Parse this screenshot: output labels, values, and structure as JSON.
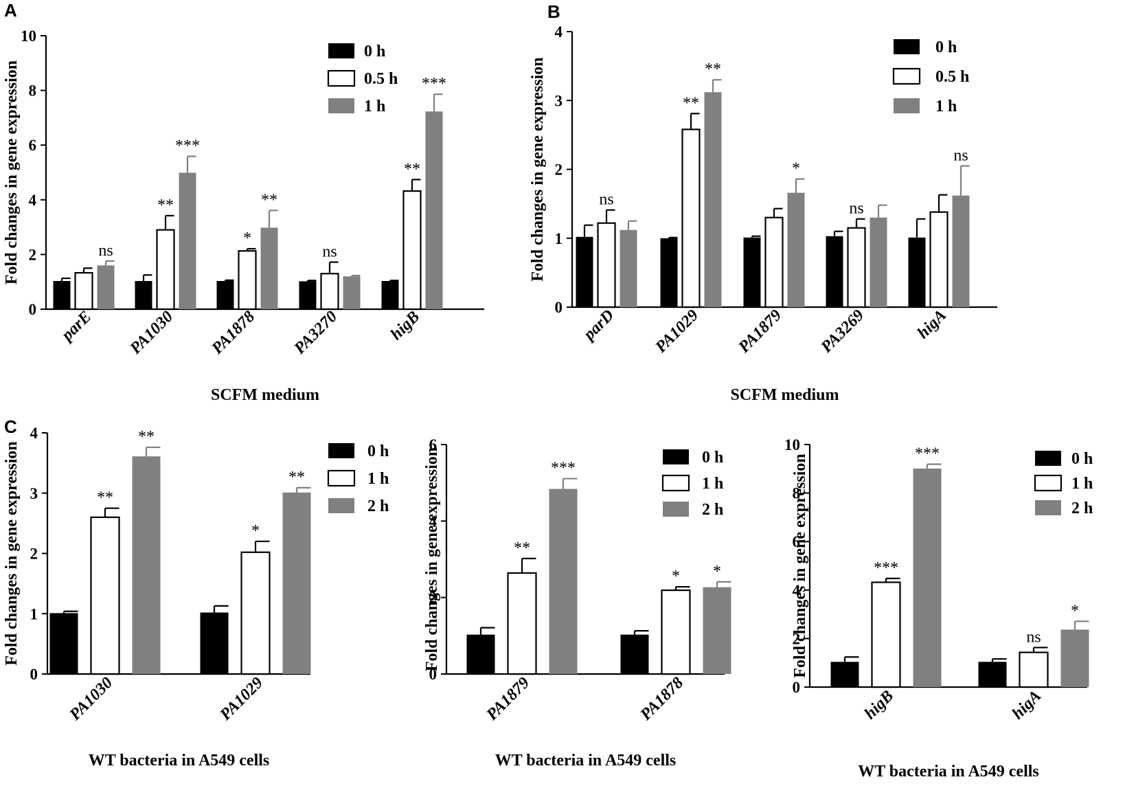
{
  "panel_letters": [
    "A",
    "B",
    "C"
  ],
  "colors": {
    "t0": "#000000",
    "t1": "#ffffff",
    "t2": "#808080",
    "axis": "#000000"
  },
  "chart_data": [
    {
      "id": "A",
      "type": "bar",
      "ylabel": "Fold changes in gene expression",
      "xlabel": "SCFM medium",
      "ylim": [
        0,
        10
      ],
      "yticks": [
        0,
        2,
        4,
        6,
        8,
        10
      ],
      "categories": [
        "parE",
        "PA1030",
        "PA1878",
        "PA3270",
        "higB"
      ],
      "series": [
        {
          "name": "0 h",
          "values": [
            1.03,
            1.03,
            1.03,
            1.02,
            1.03
          ],
          "errors": [
            0.1,
            0.22,
            0.03,
            0.03,
            0.02
          ],
          "sig": [
            "",
            "",
            "",
            "",
            ""
          ]
        },
        {
          "name": "0.5 h",
          "values": [
            1.33,
            2.9,
            2.13,
            1.3,
            4.32
          ],
          "errors": [
            0.17,
            0.52,
            0.08,
            0.42,
            0.42
          ],
          "sig": [
            "",
            "**",
            "*",
            "ns",
            "**"
          ]
        },
        {
          "name": "1 h",
          "values": [
            1.6,
            4.99,
            2.98,
            1.2,
            7.23
          ],
          "errors": [
            0.16,
            0.6,
            0.63,
            0.03,
            0.63
          ],
          "sig": [
            "ns",
            "***",
            "**",
            "",
            "***"
          ]
        }
      ]
    },
    {
      "id": "B",
      "type": "bar",
      "ylabel": "Fold changes in gene expression",
      "xlabel": "SCFM medium",
      "ylim": [
        0,
        4
      ],
      "yticks": [
        0,
        1,
        2,
        3,
        4
      ],
      "categories": [
        "parD",
        "PA1029",
        "PA1879",
        "PA3269",
        "higA"
      ],
      "series": [
        {
          "name": "0 h",
          "values": [
            1.02,
            1.0,
            1.01,
            1.03,
            1.01
          ],
          "errors": [
            0.17,
            0.01,
            0.02,
            0.07,
            0.27
          ],
          "sig": [
            "",
            "",
            "",
            "",
            ""
          ]
        },
        {
          "name": "0.5 h",
          "values": [
            1.22,
            2.58,
            1.3,
            1.15,
            1.38
          ],
          "errors": [
            0.19,
            0.23,
            0.13,
            0.13,
            0.25
          ],
          "sig": [
            "ns",
            "**",
            "",
            "ns",
            ""
          ]
        },
        {
          "name": "1 h",
          "values": [
            1.12,
            3.12,
            1.66,
            1.3,
            1.62
          ],
          "errors": [
            0.13,
            0.18,
            0.2,
            0.18,
            0.43
          ],
          "sig": [
            "",
            "**",
            "*",
            "",
            "ns"
          ]
        }
      ]
    },
    {
      "id": "C1",
      "type": "bar",
      "ylabel": "Fold changes in gene expression",
      "xlabel": "WT bacteria in A549 cells",
      "ylim": [
        0,
        4
      ],
      "yticks": [
        0,
        1,
        2,
        3,
        4
      ],
      "categories": [
        "PA1030",
        "PA1029"
      ],
      "series": [
        {
          "name": "0 h",
          "values": [
            1.01,
            1.02
          ],
          "errors": [
            0.03,
            0.11
          ],
          "sig": [
            "",
            ""
          ]
        },
        {
          "name": "1 h",
          "values": [
            2.6,
            2.02
          ],
          "errors": [
            0.15,
            0.18
          ],
          "sig": [
            "**",
            "*"
          ]
        },
        {
          "name": "2 h",
          "values": [
            3.61,
            3.01
          ],
          "errors": [
            0.15,
            0.08
          ],
          "sig": [
            "**",
            "**"
          ]
        }
      ]
    },
    {
      "id": "C2",
      "type": "bar",
      "ylabel": "Fold changes in gene expression",
      "xlabel": "WT bacteria in A549 cells",
      "ylim": [
        0,
        6
      ],
      "yticks": [
        0,
        2,
        4,
        6
      ],
      "categories": [
        "PA1879",
        "PA1878"
      ],
      "series": [
        {
          "name": "0 h",
          "values": [
            1.03,
            1.03
          ],
          "errors": [
            0.18,
            0.1
          ],
          "sig": [
            "",
            ""
          ]
        },
        {
          "name": "1 h",
          "values": [
            2.64,
            2.19
          ],
          "errors": [
            0.38,
            0.09
          ],
          "sig": [
            "**",
            "*"
          ]
        },
        {
          "name": "2 h",
          "values": [
            4.84,
            2.27
          ],
          "errors": [
            0.27,
            0.14
          ],
          "sig": [
            "***",
            "*"
          ]
        }
      ]
    },
    {
      "id": "C3",
      "type": "bar",
      "ylabel": "Fold changes in gene expression",
      "xlabel": "WT bacteria in A549 cells",
      "ylim": [
        0,
        10
      ],
      "yticks": [
        0,
        2,
        4,
        6,
        8,
        10
      ],
      "categories": [
        "higB",
        "higA"
      ],
      "series": [
        {
          "name": "0 h",
          "values": [
            1.04,
            1.04
          ],
          "errors": [
            0.2,
            0.12
          ],
          "sig": [
            "",
            ""
          ]
        },
        {
          "name": "1 h",
          "values": [
            4.32,
            1.43
          ],
          "errors": [
            0.16,
            0.2
          ],
          "sig": [
            "***",
            "ns"
          ]
        },
        {
          "name": "2 h",
          "values": [
            9.01,
            2.37
          ],
          "errors": [
            0.18,
            0.34
          ],
          "sig": [
            "***",
            "*"
          ]
        }
      ]
    }
  ]
}
